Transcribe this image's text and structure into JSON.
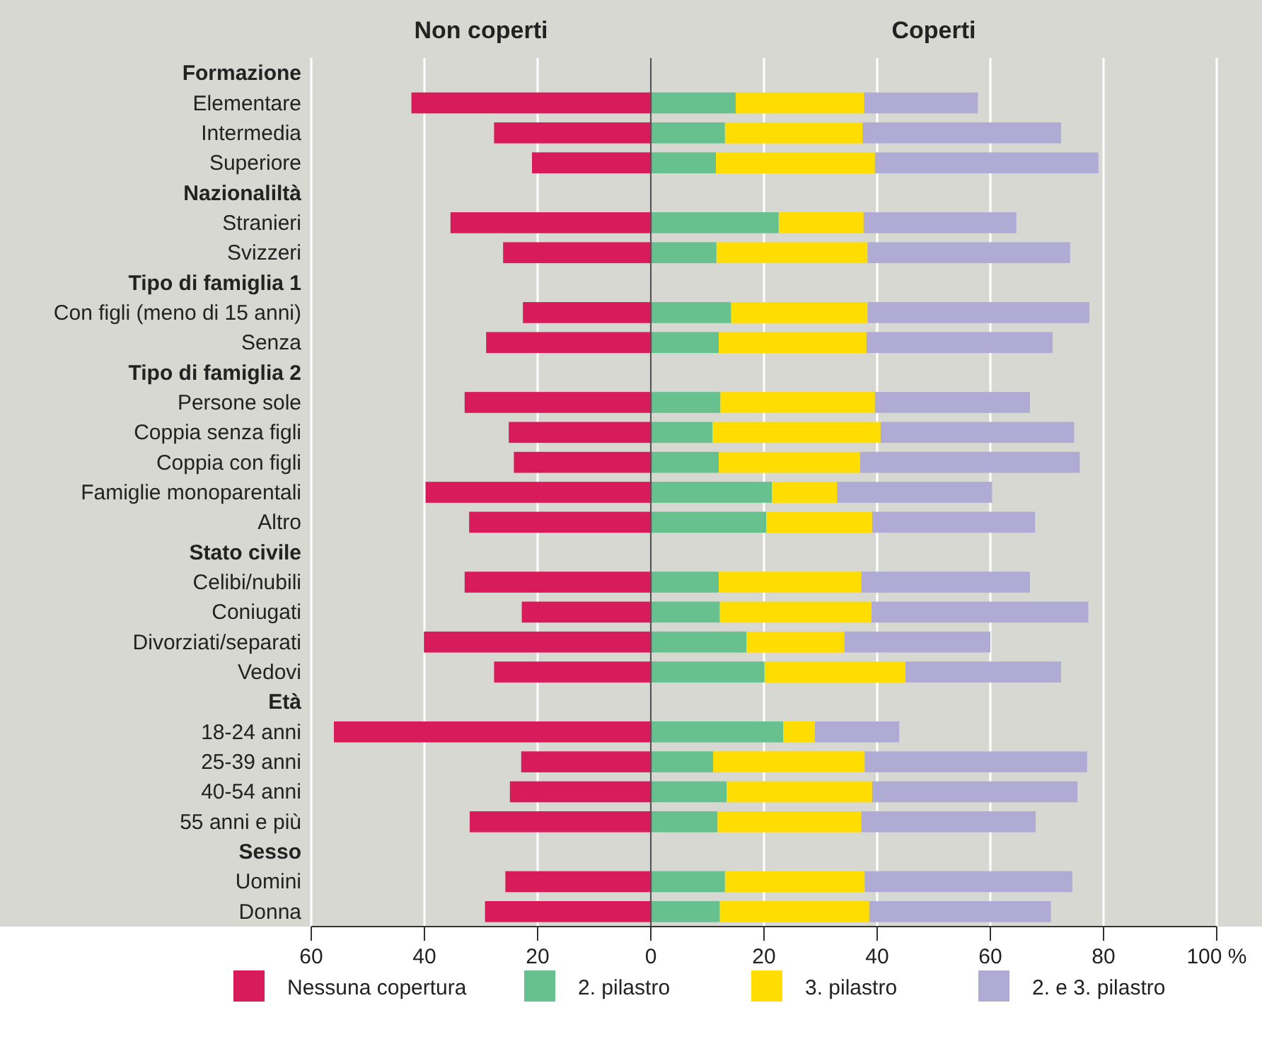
{
  "chart_data": {
    "type": "bar",
    "orientation": "horizontal",
    "stacked": true,
    "categories": [
      "Formazione",
      "Elementare",
      "Intermedia",
      "Superiore",
      "Nazionaliltà",
      "Stranieri",
      "Svizzeri",
      "Tipo di famiglia 1",
      "Con figli (meno di 15 anni)",
      "Senza",
      "Tipo di famiglia 2",
      "Persone sole",
      "Coppia senza figli",
      "Coppia con figli",
      "Famiglie monoparentali",
      "Altro",
      "Stato civile",
      "Celibi/nubili",
      "Coniugati",
      "Divorziati/separati",
      "Vedovi",
      "Età",
      "18-24 anni",
      "25-39 anni",
      "40-54 anni",
      "55 anni e più",
      "Sesso",
      "Uomini",
      "Donna"
    ],
    "series": [
      {
        "name": "Nessuna copertura",
        "color": "#d81b5a",
        "values": [
          null,
          -42.3,
          -27.7,
          -21.0,
          null,
          -35.4,
          -26.1,
          null,
          -22.6,
          -29.1,
          null,
          -32.9,
          -25.1,
          -24.2,
          -39.8,
          -32.1,
          null,
          -32.9,
          -22.8,
          -40.1,
          -27.7,
          null,
          -56.0,
          -22.9,
          -24.9,
          -32.0,
          null,
          -25.7,
          -29.3
        ]
      },
      {
        "name": "2. pilastro",
        "color": "#66c18e",
        "values": [
          null,
          15.0,
          13.1,
          11.5,
          null,
          22.6,
          11.6,
          null,
          14.2,
          12.0,
          null,
          12.3,
          10.9,
          12.0,
          21.4,
          20.4,
          null,
          12.0,
          12.2,
          16.9,
          20.1,
          null,
          23.4,
          11.0,
          13.4,
          11.8,
          null,
          13.1,
          12.2
        ]
      },
      {
        "name": "3. pilastro",
        "color": "#ffdd00",
        "values": [
          null,
          22.7,
          24.3,
          28.1,
          null,
          15.0,
          26.7,
          null,
          24.1,
          26.1,
          null,
          27.3,
          29.7,
          25.0,
          11.5,
          18.7,
          null,
          25.2,
          26.8,
          17.3,
          24.9,
          null,
          5.6,
          26.8,
          25.7,
          25.4,
          null,
          24.7,
          26.4
        ]
      },
      {
        "name": "2. e 3. pilastro",
        "color": "#b0abd4",
        "values": [
          null,
          20.1,
          35.1,
          39.5,
          null,
          27.0,
          35.8,
          null,
          39.2,
          32.9,
          null,
          27.4,
          34.2,
          38.8,
          27.4,
          28.8,
          null,
          29.8,
          38.3,
          25.8,
          27.5,
          null,
          14.9,
          39.3,
          36.3,
          30.8,
          null,
          36.7,
          32.1
        ]
      }
    ],
    "xlim": [
      -60,
      100
    ],
    "xticks": [
      {
        "value": -60,
        "label": "60"
      },
      {
        "value": -40,
        "label": "40"
      },
      {
        "value": -20,
        "label": "20"
      },
      0,
      20,
      40,
      60,
      80,
      {
        "value": 100,
        "label": "100 %"
      }
    ],
    "grid": "x",
    "legend": "bottom",
    "annotations": [
      "Non coperti",
      "Coperti"
    ]
  }
}
